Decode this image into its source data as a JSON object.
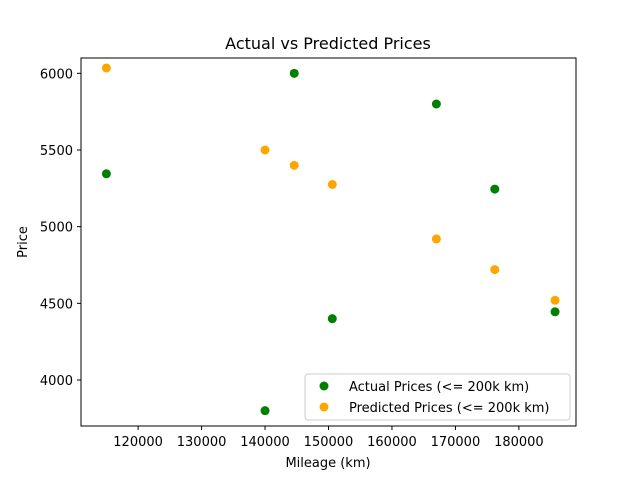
{
  "chart_data": {
    "type": "scatter",
    "title": "Actual vs Predicted Prices",
    "xlabel": "Mileage (km)",
    "ylabel": "Price",
    "xlim": [
      111000,
      189000
    ],
    "ylim": [
      3700,
      6100
    ],
    "xticks": [
      120000,
      130000,
      140000,
      150000,
      160000,
      170000,
      180000
    ],
    "yticks": [
      4000,
      4500,
      5000,
      5500,
      6000
    ],
    "grid": false,
    "legend_position": "lower-right",
    "series": [
      {
        "name": "Actual Prices (<= 200k km)",
        "color": "#008000",
        "points": [
          {
            "x": 115000,
            "y": 5345
          },
          {
            "x": 140000,
            "y": 3800
          },
          {
            "x": 144600,
            "y": 6000
          },
          {
            "x": 150600,
            "y": 4400
          },
          {
            "x": 167000,
            "y": 5800
          },
          {
            "x": 176200,
            "y": 5245
          },
          {
            "x": 185700,
            "y": 4445
          }
        ]
      },
      {
        "name": "Predicted Prices (<= 200k km)",
        "color": "#FFA500",
        "points": [
          {
            "x": 115000,
            "y": 6035
          },
          {
            "x": 140000,
            "y": 5500
          },
          {
            "x": 144600,
            "y": 5400
          },
          {
            "x": 150600,
            "y": 5275
          },
          {
            "x": 167000,
            "y": 4920
          },
          {
            "x": 176200,
            "y": 4720
          },
          {
            "x": 185700,
            "y": 4520
          }
        ]
      }
    ]
  }
}
